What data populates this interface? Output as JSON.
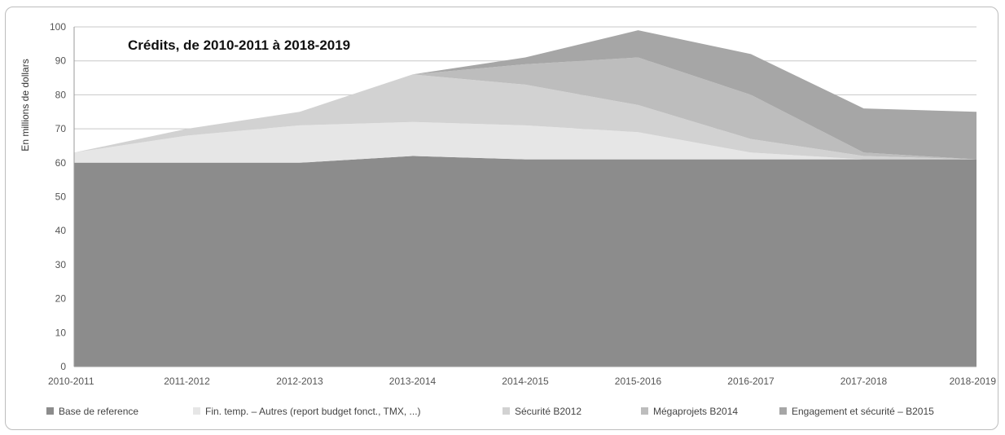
{
  "chart_data": {
    "type": "area",
    "stacked": true,
    "title": "Crédits, de 2010-2011 à 2018-2019",
    "xlabel": "",
    "ylabel": "En millions de dollars",
    "categories": [
      "2010-2011",
      "2011-2012",
      "2012-2013",
      "2013-2014",
      "2014-2015",
      "2015-2016",
      "2016-2017",
      "2017-2018",
      "2018-2019"
    ],
    "ylim": [
      0,
      100
    ],
    "yticks": [
      0,
      10,
      20,
      30,
      40,
      50,
      60,
      70,
      80,
      90,
      100
    ],
    "grid": true,
    "legend_position": "bottom",
    "series": [
      {
        "name": "Base de reference",
        "color": "#8c8c8c",
        "values": [
          60,
          60,
          60,
          62,
          61,
          61,
          61,
          61,
          61
        ]
      },
      {
        "name": "Fin. temp. – Autres (report budget fonct., TMX, ...)",
        "color": "#e6e6e6",
        "values": [
          3,
          8,
          11,
          10,
          10,
          8,
          2,
          0,
          0
        ]
      },
      {
        "name": "Sécurité B2012",
        "color": "#d2d2d2",
        "values": [
          0,
          2,
          4,
          14,
          12,
          8,
          4,
          1,
          0
        ]
      },
      {
        "name": "Mégaprojets B2014",
        "color": "#bdbdbd",
        "values": [
          0,
          0,
          0,
          0,
          6,
          14,
          13,
          1,
          0
        ]
      },
      {
        "name": "Engagement et sécurité – B2015",
        "color": "#a6a6a6",
        "values": [
          0,
          0,
          0,
          0,
          2,
          8,
          12,
          13,
          14
        ]
      }
    ]
  }
}
